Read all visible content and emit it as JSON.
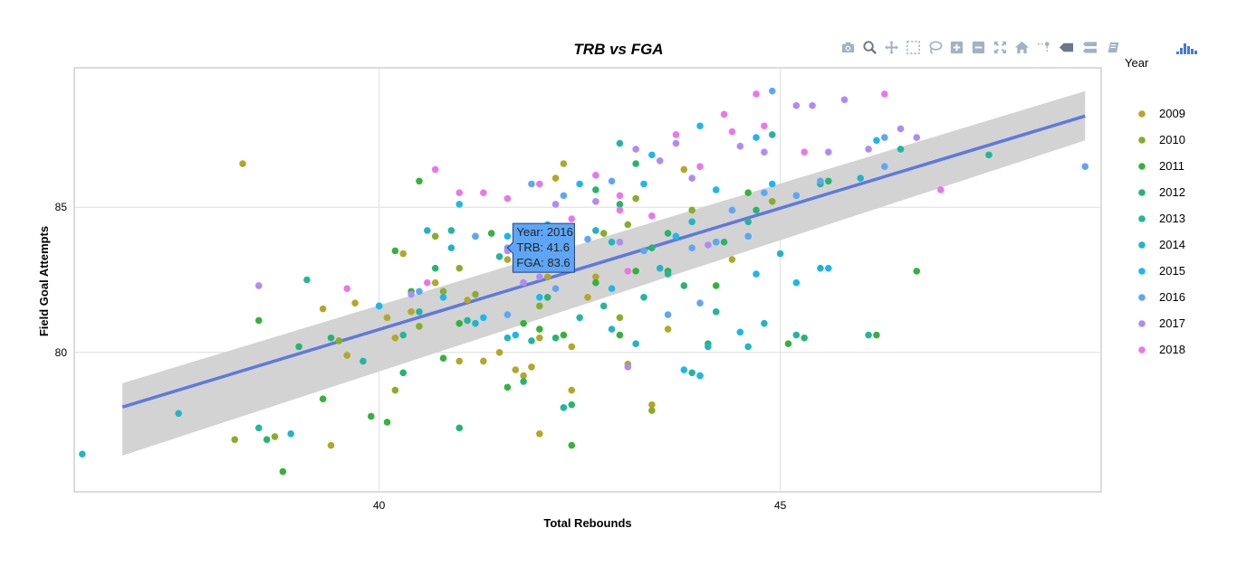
{
  "toolbar": {
    "buttons": [
      {
        "name": "download-plot-button",
        "icon": "camera-icon"
      },
      {
        "name": "zoom-button",
        "icon": "magnifier-icon"
      },
      {
        "name": "pan-button",
        "icon": "pan-arrows-icon"
      },
      {
        "name": "box-select-button",
        "icon": "box-select-icon"
      },
      {
        "name": "lasso-select-button",
        "icon": "lasso-icon"
      },
      {
        "name": "zoom-in-button",
        "icon": "plus-box-icon"
      },
      {
        "name": "zoom-out-button",
        "icon": "minus-box-icon"
      },
      {
        "name": "autoscale-button",
        "icon": "autoscale-icon"
      },
      {
        "name": "reset-axes-button",
        "icon": "home-icon"
      },
      {
        "name": "spike-lines-button",
        "icon": "spike-lines-icon"
      },
      {
        "name": "hover-closest-button",
        "icon": "hover-closest-icon"
      },
      {
        "name": "hover-compare-button",
        "icon": "hover-compare-icon"
      },
      {
        "name": "edit-chart-studio-button",
        "icon": "chart-studio-icon"
      }
    ],
    "logo": "plotly-logo-icon"
  },
  "chart_data": {
    "type": "scatter",
    "title": "TRB vs FGA",
    "xlabel": "Total Rebounds",
    "ylabel": "Field Goal Attempts",
    "xlim": [
      36.2,
      49.0
    ],
    "ylim": [
      75.2,
      89.8
    ],
    "xticks": [
      {
        "value": 40,
        "label": "40"
      },
      {
        "value": 45,
        "label": "45"
      }
    ],
    "yticks": [
      {
        "value": 80,
        "label": "80"
      },
      {
        "value": 85,
        "label": "85"
      }
    ],
    "grid": true,
    "legend": {
      "title": "Year",
      "position": "right"
    },
    "series": [
      {
        "name": "2009",
        "color": "#b2a72a",
        "points": [
          [
            38.3,
            86.5
          ],
          [
            39.6,
            79.9
          ],
          [
            40.1,
            81.2
          ],
          [
            40.4,
            81.4
          ],
          [
            40.7,
            82.4
          ],
          [
            41.0,
            79.7
          ],
          [
            41.3,
            79.7
          ],
          [
            41.5,
            80.0
          ],
          [
            41.6,
            83.2
          ],
          [
            41.7,
            79.4
          ],
          [
            41.8,
            79.2
          ],
          [
            41.9,
            79.5
          ],
          [
            42.0,
            80.5
          ],
          [
            42.1,
            82.6
          ],
          [
            42.2,
            86.0
          ],
          [
            42.3,
            86.5
          ],
          [
            42.4,
            80.2
          ],
          [
            42.4,
            78.7
          ],
          [
            42.6,
            81.9
          ],
          [
            42.7,
            82.6
          ],
          [
            43.1,
            79.6
          ],
          [
            43.4,
            78.2
          ],
          [
            43.6,
            80.8
          ],
          [
            43.8,
            86.3
          ],
          [
            44.4,
            83.2
          ],
          [
            40.2,
            80.5
          ],
          [
            39.4,
            76.8
          ],
          [
            39.3,
            81.5
          ],
          [
            40.3,
            83.4
          ],
          [
            39.7,
            81.7
          ],
          [
            42.0,
            77.2
          ],
          [
            41.1,
            81.8
          ]
        ]
      },
      {
        "name": "2010",
        "color": "#89ac2c",
        "points": [
          [
            38.2,
            77.0
          ],
          [
            38.7,
            77.1
          ],
          [
            39.5,
            80.4
          ],
          [
            40.2,
            78.7
          ],
          [
            40.5,
            80.9
          ],
          [
            40.8,
            82.1
          ],
          [
            41.0,
            82.9
          ],
          [
            41.2,
            82.0
          ],
          [
            41.8,
            82.4
          ],
          [
            42.0,
            81.6
          ],
          [
            42.2,
            82.9
          ],
          [
            42.8,
            84.1
          ],
          [
            43.0,
            81.2
          ],
          [
            43.1,
            84.4
          ],
          [
            43.2,
            85.3
          ],
          [
            43.4,
            78.0
          ],
          [
            43.9,
            84.9
          ],
          [
            44.2,
            83.8
          ],
          [
            44.9,
            85.2
          ],
          [
            40.7,
            84.0
          ]
        ]
      },
      {
        "name": "2011",
        "color": "#35b23c",
        "points": [
          [
            38.5,
            81.1
          ],
          [
            38.8,
            75.9
          ],
          [
            39.3,
            78.4
          ],
          [
            39.9,
            77.8
          ],
          [
            40.1,
            77.6
          ],
          [
            40.2,
            83.5
          ],
          [
            40.4,
            82.1
          ],
          [
            40.5,
            85.9
          ],
          [
            40.8,
            79.8
          ],
          [
            41.0,
            81.0
          ],
          [
            41.4,
            84.1
          ],
          [
            41.6,
            78.8
          ],
          [
            41.8,
            81.0
          ],
          [
            42.0,
            80.8
          ],
          [
            42.3,
            80.6
          ],
          [
            42.4,
            76.8
          ],
          [
            42.7,
            82.4
          ],
          [
            43.0,
            80.6
          ],
          [
            43.2,
            82.8
          ],
          [
            43.6,
            82.8
          ],
          [
            44.0,
            79.2
          ],
          [
            44.2,
            82.3
          ],
          [
            44.6,
            85.5
          ],
          [
            45.1,
            80.3
          ],
          [
            46.2,
            80.6
          ],
          [
            46.7,
            82.8
          ]
        ]
      },
      {
        "name": "2012",
        "color": "#27b46e",
        "points": [
          [
            38.6,
            77.0
          ],
          [
            39.0,
            80.2
          ],
          [
            39.4,
            80.5
          ],
          [
            40.0,
            81.6
          ],
          [
            40.3,
            79.3
          ],
          [
            40.7,
            82.9
          ],
          [
            41.0,
            77.4
          ],
          [
            41.2,
            84.0
          ],
          [
            41.8,
            79.0
          ],
          [
            42.1,
            81.9
          ],
          [
            42.4,
            78.2
          ],
          [
            42.7,
            85.6
          ],
          [
            43.0,
            85.1
          ],
          [
            43.2,
            86.5
          ],
          [
            43.4,
            83.6
          ],
          [
            43.6,
            84.1
          ],
          [
            43.8,
            82.3
          ],
          [
            44.1,
            80.3
          ],
          [
            44.3,
            83.8
          ],
          [
            44.7,
            84.9
          ],
          [
            45.3,
            80.5
          ],
          [
            45.6,
            85.9
          ],
          [
            42.2,
            80.5
          ]
        ]
      },
      {
        "name": "2013",
        "color": "#25b59d",
        "points": [
          [
            38.5,
            77.4
          ],
          [
            39.1,
            82.5
          ],
          [
            39.8,
            79.7
          ],
          [
            40.3,
            80.6
          ],
          [
            40.5,
            81.4
          ],
          [
            40.9,
            84.2
          ],
          [
            41.1,
            81.1
          ],
          [
            41.5,
            83.3
          ],
          [
            41.9,
            80.4
          ],
          [
            42.3,
            78.1
          ],
          [
            42.5,
            81.2
          ],
          [
            42.8,
            81.6
          ],
          [
            43.0,
            87.2
          ],
          [
            43.3,
            81.9
          ],
          [
            43.6,
            82.7
          ],
          [
            43.9,
            79.3
          ],
          [
            44.2,
            81.4
          ],
          [
            44.6,
            84.5
          ],
          [
            44.9,
            87.5
          ],
          [
            45.2,
            80.6
          ],
          [
            45.5,
            85.8
          ],
          [
            46.1,
            80.6
          ],
          [
            46.5,
            87.0
          ],
          [
            47.6,
            86.8
          ]
        ]
      },
      {
        "name": "2014",
        "color": "#22b4c5",
        "points": [
          [
            36.3,
            76.5
          ],
          [
            37.5,
            77.9
          ],
          [
            38.9,
            77.2
          ],
          [
            40.6,
            84.2
          ],
          [
            40.9,
            83.6
          ],
          [
            41.2,
            81.0
          ],
          [
            41.6,
            80.5
          ],
          [
            42.0,
            83.0
          ],
          [
            42.3,
            84.3
          ],
          [
            42.7,
            84.2
          ],
          [
            42.9,
            80.8
          ],
          [
            43.2,
            80.3
          ],
          [
            43.5,
            82.9
          ],
          [
            43.9,
            84.5
          ],
          [
            44.1,
            80.2
          ],
          [
            44.6,
            80.2
          ],
          [
            44.8,
            81.0
          ],
          [
            45.0,
            83.4
          ],
          [
            45.5,
            82.9
          ],
          [
            46.0,
            86.0
          ],
          [
            42.9,
            83.8
          ]
        ]
      },
      {
        "name": "2015",
        "color": "#1fb6ee",
        "points": [
          [
            40.0,
            81.6
          ],
          [
            40.8,
            81.9
          ],
          [
            41.3,
            81.2
          ],
          [
            41.7,
            80.6
          ],
          [
            42.1,
            84.4
          ],
          [
            42.5,
            85.8
          ],
          [
            42.9,
            82.2
          ],
          [
            43.3,
            85.8
          ],
          [
            43.7,
            84.0
          ],
          [
            44.0,
            87.8
          ],
          [
            44.2,
            85.6
          ],
          [
            44.5,
            80.7
          ],
          [
            44.7,
            87.4
          ],
          [
            44.9,
            85.8
          ],
          [
            45.2,
            82.4
          ],
          [
            45.6,
            82.9
          ],
          [
            46.2,
            87.3
          ],
          [
            41.0,
            85.1
          ],
          [
            42.0,
            81.9
          ],
          [
            43.8,
            79.4
          ],
          [
            44.0,
            79.2
          ],
          [
            44.7,
            82.7
          ],
          [
            41.6,
            84.0
          ],
          [
            43.4,
            86.8
          ]
        ]
      },
      {
        "name": "2016",
        "color": "#5ea6f5",
        "points": [
          [
            40.5,
            82.1
          ],
          [
            41.2,
            84.0
          ],
          [
            41.6,
            81.3
          ],
          [
            41.6,
            83.6
          ],
          [
            41.9,
            85.8
          ],
          [
            42.3,
            85.4
          ],
          [
            42.6,
            83.9
          ],
          [
            42.9,
            85.9
          ],
          [
            43.3,
            83.5
          ],
          [
            43.6,
            81.3
          ],
          [
            43.9,
            83.6
          ],
          [
            44.2,
            83.8
          ],
          [
            44.4,
            84.9
          ],
          [
            44.6,
            84.0
          ],
          [
            44.8,
            85.5
          ],
          [
            45.2,
            85.4
          ],
          [
            45.5,
            85.9
          ],
          [
            46.3,
            87.4
          ],
          [
            46.3,
            86.4
          ],
          [
            48.8,
            86.4
          ],
          [
            44.0,
            81.7
          ],
          [
            44.9,
            89.0
          ],
          [
            42.2,
            82.2
          ]
        ]
      },
      {
        "name": "2017",
        "color": "#ae8bf5",
        "points": [
          [
            38.5,
            82.3
          ],
          [
            40.4,
            82.0
          ],
          [
            41.6,
            83.5
          ],
          [
            41.8,
            82.4
          ],
          [
            42.2,
            85.1
          ],
          [
            42.7,
            85.2
          ],
          [
            43.0,
            83.8
          ],
          [
            43.2,
            87.0
          ],
          [
            43.5,
            86.6
          ],
          [
            43.7,
            87.2
          ],
          [
            43.9,
            86.0
          ],
          [
            44.1,
            83.7
          ],
          [
            44.5,
            87.1
          ],
          [
            44.8,
            86.9
          ],
          [
            45.2,
            88.5
          ],
          [
            45.4,
            88.5
          ],
          [
            45.6,
            86.9
          ],
          [
            45.8,
            88.7
          ],
          [
            46.1,
            87.0
          ],
          [
            46.5,
            87.7
          ],
          [
            46.7,
            87.4
          ],
          [
            43.1,
            79.5
          ],
          [
            42.0,
            82.6
          ]
        ]
      },
      {
        "name": "2018",
        "color": "#e877ec",
        "points": [
          [
            39.6,
            82.2
          ],
          [
            40.6,
            82.4
          ],
          [
            40.7,
            86.3
          ],
          [
            41.0,
            85.5
          ],
          [
            41.3,
            85.5
          ],
          [
            41.6,
            85.3
          ],
          [
            42.0,
            85.8
          ],
          [
            42.4,
            84.6
          ],
          [
            42.7,
            86.1
          ],
          [
            43.0,
            84.9
          ],
          [
            43.4,
            84.7
          ],
          [
            43.7,
            87.5
          ],
          [
            44.0,
            86.4
          ],
          [
            44.3,
            88.2
          ],
          [
            44.4,
            87.6
          ],
          [
            44.7,
            88.9
          ],
          [
            44.8,
            87.8
          ],
          [
            45.3,
            86.9
          ],
          [
            46.3,
            88.9
          ],
          [
            47.0,
            85.6
          ],
          [
            43.1,
            82.8
          ],
          [
            43.0,
            85.4
          ]
        ]
      }
    ],
    "trend": {
      "x0": 36.8,
      "y0": 78.12,
      "x1": 48.8,
      "y1": 88.14,
      "band_low": [
        76.45,
        87.3
      ],
      "band_high": [
        78.94,
        89.0
      ],
      "color": "#5f79dd",
      "band_color": "#d3d3d3"
    },
    "hover": {
      "x": 41.6,
      "y": 83.6,
      "lines": [
        "Year: 2016",
        "TRB: 41.6",
        "FGA: 83.6"
      ],
      "bg": "#5ea6f5"
    }
  }
}
